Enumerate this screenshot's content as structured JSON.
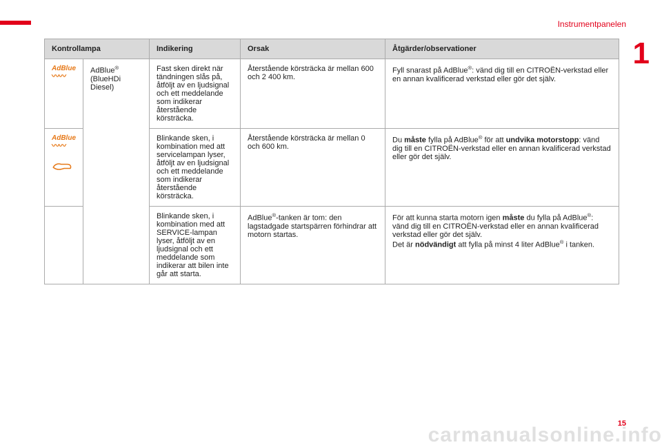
{
  "header": {
    "section": "Instrumentpanelen",
    "chapter_number": "1",
    "page_number": "15"
  },
  "watermark": "carmanualsonline.info",
  "table": {
    "headers": {
      "lamp": "Kontrollampa",
      "indication": "Indikering",
      "cause": "Orsak",
      "action": "Åtgärder/observationer"
    },
    "adblue_label": "AdBlue",
    "adblue_name_html": "AdBlue<sup>®</sup> (BlueHDi Diesel)",
    "rows": [
      {
        "indication": "Fast sken direkt när tändningen slås på, åtföljt av en ljudsignal och ett meddelande som indikerar återstående körsträcka.",
        "cause": "Återstående körsträcka är mellan 600 och 2 400 km.",
        "action_html": "Fyll snarast på AdBlue<sup>®</sup>: vänd dig till en CITROËN-verkstad eller en annan kvalificerad verkstad eller gör det själv."
      },
      {
        "indication": "Blinkande sken, i kombination med att servicelampan lyser, åtföljt av en ljudsignal och ett meddelande som indikerar återstående körsträcka.",
        "cause": "Återstående körsträcka är mellan 0 och 600 km.",
        "action_html": "Du <b>måste</b> fylla på AdBlue<sup>®</sup> för att <b>undvika motorstopp</b>: vänd dig till en CITROËN-verkstad eller en annan kvalificerad verkstad eller gör det själv."
      },
      {
        "indication": "Blinkande sken, i kombination med att SERVICE-lampan lyser, åtföljt av en ljudsignal och ett meddelande som indikerar att bilen inte går att starta.",
        "cause_html": "AdBlue<sup>®</sup>-tanken är tom: den lagstadgade startspärren förhindrar att motorn startas.",
        "action_html": "För att kunna starta motorn igen <b>måste</b> du fylla på AdBlue<sup>®</sup>: vänd dig till en CITROËN-verkstad eller en annan kvalificerad verkstad eller gör det själv.<br>Det är <b>nödvändigt</b> att fylla på minst 4 liter AdBlue<sup>®</sup> i tanken."
      }
    ]
  },
  "colors": {
    "accent": "#e2001a",
    "icon_orange": "#e67817",
    "header_bg": "#d9d9d9",
    "border": "#aaaaaa",
    "watermark": "rgba(0,0,0,0.12)"
  }
}
